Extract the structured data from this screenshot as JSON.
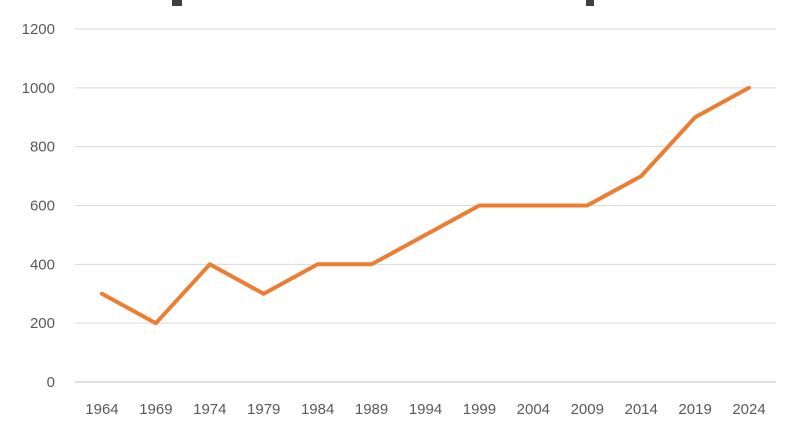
{
  "chart_data": {
    "type": "line",
    "title": "",
    "xlabel": "",
    "ylabel": "",
    "categories": [
      "1964",
      "1969",
      "1974",
      "1979",
      "1984",
      "1989",
      "1994",
      "1999",
      "2004",
      "2009",
      "2014",
      "2019",
      "2024"
    ],
    "series": [
      {
        "values": [
          300,
          200,
          400,
          300,
          400,
          400,
          500,
          600,
          600,
          600,
          700,
          900,
          1000
        ],
        "color": "#ed7d31"
      }
    ],
    "ylim": [
      0,
      1200
    ],
    "yticks": [
      0,
      200,
      400,
      600,
      800,
      1000,
      1200
    ],
    "grid": "horizontal",
    "legend": "none"
  }
}
